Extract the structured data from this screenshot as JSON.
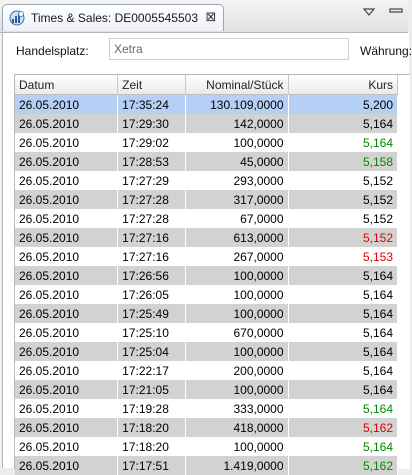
{
  "tab": {
    "title": "Times & Sales: DE0005545503",
    "close_glyph": "⊠",
    "icon": "clock-chart-icon"
  },
  "filters": {
    "exchange_label": "Handelsplatz:",
    "exchange_value": "Xetra",
    "currency_label": "Währung:"
  },
  "table": {
    "columns": [
      "Datum",
      "Zeit",
      "Nominal/Stück",
      "Kurs"
    ],
    "rows": [
      {
        "date": "26.05.2010",
        "time": "17:35:24",
        "nominal": "130.109,0000",
        "price": "5,200",
        "trend": "neutral"
      },
      {
        "date": "26.05.2010",
        "time": "17:29:30",
        "nominal": "142,0000",
        "price": "5,164",
        "trend": "neutral"
      },
      {
        "date": "26.05.2010",
        "time": "17:29:02",
        "nominal": "100,0000",
        "price": "5,164",
        "trend": "up"
      },
      {
        "date": "26.05.2010",
        "time": "17:28:53",
        "nominal": "45,0000",
        "price": "5,158",
        "trend": "up"
      },
      {
        "date": "26.05.2010",
        "time": "17:27:29",
        "nominal": "293,0000",
        "price": "5,152",
        "trend": "neutral"
      },
      {
        "date": "26.05.2010",
        "time": "17:27:28",
        "nominal": "317,0000",
        "price": "5,152",
        "trend": "neutral"
      },
      {
        "date": "26.05.2010",
        "time": "17:27:28",
        "nominal": "67,0000",
        "price": "5,152",
        "trend": "neutral"
      },
      {
        "date": "26.05.2010",
        "time": "17:27:16",
        "nominal": "613,0000",
        "price": "5,152",
        "trend": "down"
      },
      {
        "date": "26.05.2010",
        "time": "17:27:16",
        "nominal": "267,0000",
        "price": "5,153",
        "trend": "down"
      },
      {
        "date": "26.05.2010",
        "time": "17:26:56",
        "nominal": "100,0000",
        "price": "5,164",
        "trend": "neutral"
      },
      {
        "date": "26.05.2010",
        "time": "17:26:05",
        "nominal": "100,0000",
        "price": "5,164",
        "trend": "neutral"
      },
      {
        "date": "26.05.2010",
        "time": "17:25:49",
        "nominal": "100,0000",
        "price": "5,164",
        "trend": "neutral"
      },
      {
        "date": "26.05.2010",
        "time": "17:25:10",
        "nominal": "670,0000",
        "price": "5,164",
        "trend": "neutral"
      },
      {
        "date": "26.05.2010",
        "time": "17:25:04",
        "nominal": "100,0000",
        "price": "5,164",
        "trend": "neutral"
      },
      {
        "date": "26.05.2010",
        "time": "17:22:17",
        "nominal": "200,0000",
        "price": "5,164",
        "trend": "neutral"
      },
      {
        "date": "26.05.2010",
        "time": "17:21:05",
        "nominal": "100,0000",
        "price": "5,164",
        "trend": "neutral"
      },
      {
        "date": "26.05.2010",
        "time": "17:19:28",
        "nominal": "333,0000",
        "price": "5,164",
        "trend": "up"
      },
      {
        "date": "26.05.2010",
        "time": "17:18:20",
        "nominal": "418,0000",
        "price": "5,162",
        "trend": "down"
      },
      {
        "date": "26.05.2010",
        "time": "17:18:20",
        "nominal": "100,0000",
        "price": "5,164",
        "trend": "up"
      },
      {
        "date": "26.05.2010",
        "time": "17:17:51",
        "nominal": "1.419,0000",
        "price": "5,162",
        "trend": "up"
      }
    ],
    "selected_row": 0
  },
  "colors": {
    "up": "#008a00",
    "down": "#e00000",
    "selection": "#b6cff5",
    "alt_row": "#d2d2d2"
  }
}
